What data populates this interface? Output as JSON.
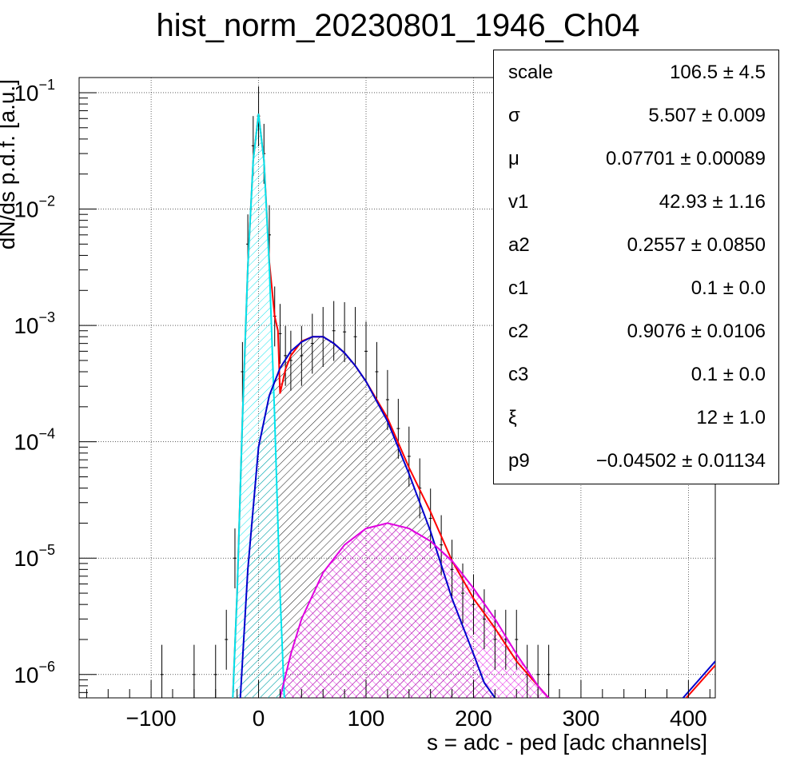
{
  "chart_data": {
    "type": "line",
    "title": "hist_norm_20230801_1946_Ch04",
    "xlabel": "s = adc - ped [adc channels]",
    "ylabel": "dN/ds p.d.f. [a.u.]",
    "xlim": [
      -167,
      425
    ],
    "ylim": [
      6.3e-07,
      0.135
    ],
    "yscale": "log",
    "grid": true,
    "xticks": [
      -100,
      0,
      100,
      200,
      300,
      400
    ],
    "xtick_labels": [
      "−100",
      "0",
      "100",
      "200",
      "300",
      "400"
    ],
    "yticks": [
      {
        "base": "10",
        "exp": "−1",
        "value": 0.1
      },
      {
        "base": "10",
        "exp": "−2",
        "value": 0.01
      },
      {
        "base": "10",
        "exp": "−3",
        "value": 0.001
      },
      {
        "base": "10",
        "exp": "−4",
        "value": 0.0001
      },
      {
        "base": "10",
        "exp": "−5",
        "value": 1e-05
      },
      {
        "base": "10",
        "exp": "−6",
        "value": 1e-06
      }
    ],
    "colors": {
      "total_fit": "#ff0000",
      "pedestal": "#00e5ee",
      "single_pe": "#0000cc",
      "double_pe": "#e000e0",
      "data": "#000000"
    },
    "series": [
      {
        "name": "",
        "role": "data",
        "x": [
          -90,
          -60,
          -40,
          -30,
          -22,
          -15,
          -10,
          -5,
          0,
          5,
          10,
          15,
          20,
          25,
          30,
          40,
          50,
          60,
          70,
          80,
          90,
          100,
          110,
          120,
          130,
          140,
          150,
          160,
          170,
          180,
          190,
          200,
          210,
          220,
          230,
          240,
          250,
          260,
          270
        ],
        "y": [
          1e-06,
          1e-06,
          1e-06,
          2e-06,
          1e-05,
          0.0004,
          0.005,
          0.035,
          0.063,
          0.03,
          0.006,
          0.0012,
          0.00085,
          0.00055,
          0.0005,
          0.00055,
          0.0007,
          0.0008,
          0.0009,
          0.00088,
          0.0008,
          0.0006,
          0.0004,
          0.00023,
          0.00013,
          7.5e-05,
          4e-05,
          2.2e-05,
          1.3e-05,
          8e-06,
          5e-06,
          4e-06,
          3e-06,
          2e-06,
          2e-06,
          2e-06,
          1e-06,
          1e-06,
          1e-06
        ]
      },
      {
        "name": "",
        "role": "total_fit",
        "x": [
          -24,
          -20,
          -15,
          -10,
          -5,
          0,
          5,
          10,
          15,
          18,
          20,
          25,
          30,
          40,
          50,
          60,
          70,
          80,
          90,
          100,
          120,
          140,
          160,
          180,
          200,
          220,
          240,
          260,
          270
        ],
        "y": [
          6.3e-07,
          5e-06,
          0.00016,
          0.0032,
          0.026,
          0.066,
          0.026,
          0.0035,
          0.0012,
          0.0009,
          0.00026,
          0.00042,
          0.00055,
          0.00073,
          0.0008,
          0.0008,
          0.0007,
          0.00058,
          0.00045,
          0.00033,
          0.00016,
          6e-05,
          2.5e-05,
          9.5e-06,
          4.5e-06,
          2.5e-06,
          1.3e-06,
          8e-07,
          6.3e-07
        ]
      },
      {
        "name": "",
        "role": "pedestal",
        "x": [
          -24,
          -20,
          -15,
          -10,
          -5,
          0,
          5,
          10,
          15,
          20,
          24
        ],
        "y": [
          6.3e-07,
          5e-06,
          0.00016,
          0.0032,
          0.026,
          0.066,
          0.026,
          0.0032,
          0.00016,
          5e-06,
          6.3e-07
        ]
      },
      {
        "name": "",
        "role": "single_pe",
        "x": [
          -17,
          -10,
          0,
          10,
          20,
          30,
          40,
          50,
          60,
          70,
          80,
          90,
          100,
          120,
          140,
          160,
          180,
          200,
          210,
          220
        ],
        "y": [
          6.3e-07,
          8e-06,
          9e-05,
          0.00025,
          0.00043,
          0.0006,
          0.00072,
          0.0008,
          0.0008,
          0.0007,
          0.00058,
          0.00045,
          0.00033,
          0.00015,
          5.3e-05,
          1.7e-05,
          4.5e-06,
          1.5e-06,
          8.5e-07,
          6.3e-07
        ]
      },
      {
        "name": "",
        "role": "double_pe",
        "x": [
          20,
          30,
          40,
          60,
          80,
          100,
          120,
          140,
          160,
          180,
          200,
          220,
          240,
          260,
          270
        ],
        "y": [
          6.3e-07,
          1.5e-06,
          3e-06,
          7.5e-06,
          1.3e-05,
          1.8e-05,
          2e-05,
          1.8e-05,
          1.4e-05,
          9.5e-06,
          5.5e-06,
          3e-06,
          1.5e-06,
          8e-07,
          6.3e-07
        ]
      },
      {
        "name": "",
        "role": "tail",
        "x": [
          395,
          425
        ],
        "y": [
          6.3e-07,
          1.3e-06
        ]
      }
    ],
    "legend": "top-right",
    "stats": [
      {
        "name": "scale",
        "value": "106.5 ± 4.5"
      },
      {
        "name": "σ",
        "value": "5.507 ± 0.009"
      },
      {
        "name": "μ",
        "value": "0.07701 ± 0.00089"
      },
      {
        "name": "v1",
        "value": "42.93 ± 1.16"
      },
      {
        "name": "a2",
        "value": "0.2557 ± 0.0850"
      },
      {
        "name": "c1",
        "value": "0.1 ± 0.0"
      },
      {
        "name": "c2",
        "value": "0.9076 ± 0.0106"
      },
      {
        "name": "c3",
        "value": "0.1 ± 0.0"
      },
      {
        "name": "ξ",
        "value": "12 ± 1.0"
      },
      {
        "name": "p9",
        "value": "−0.04502 ± 0.01134"
      }
    ]
  }
}
